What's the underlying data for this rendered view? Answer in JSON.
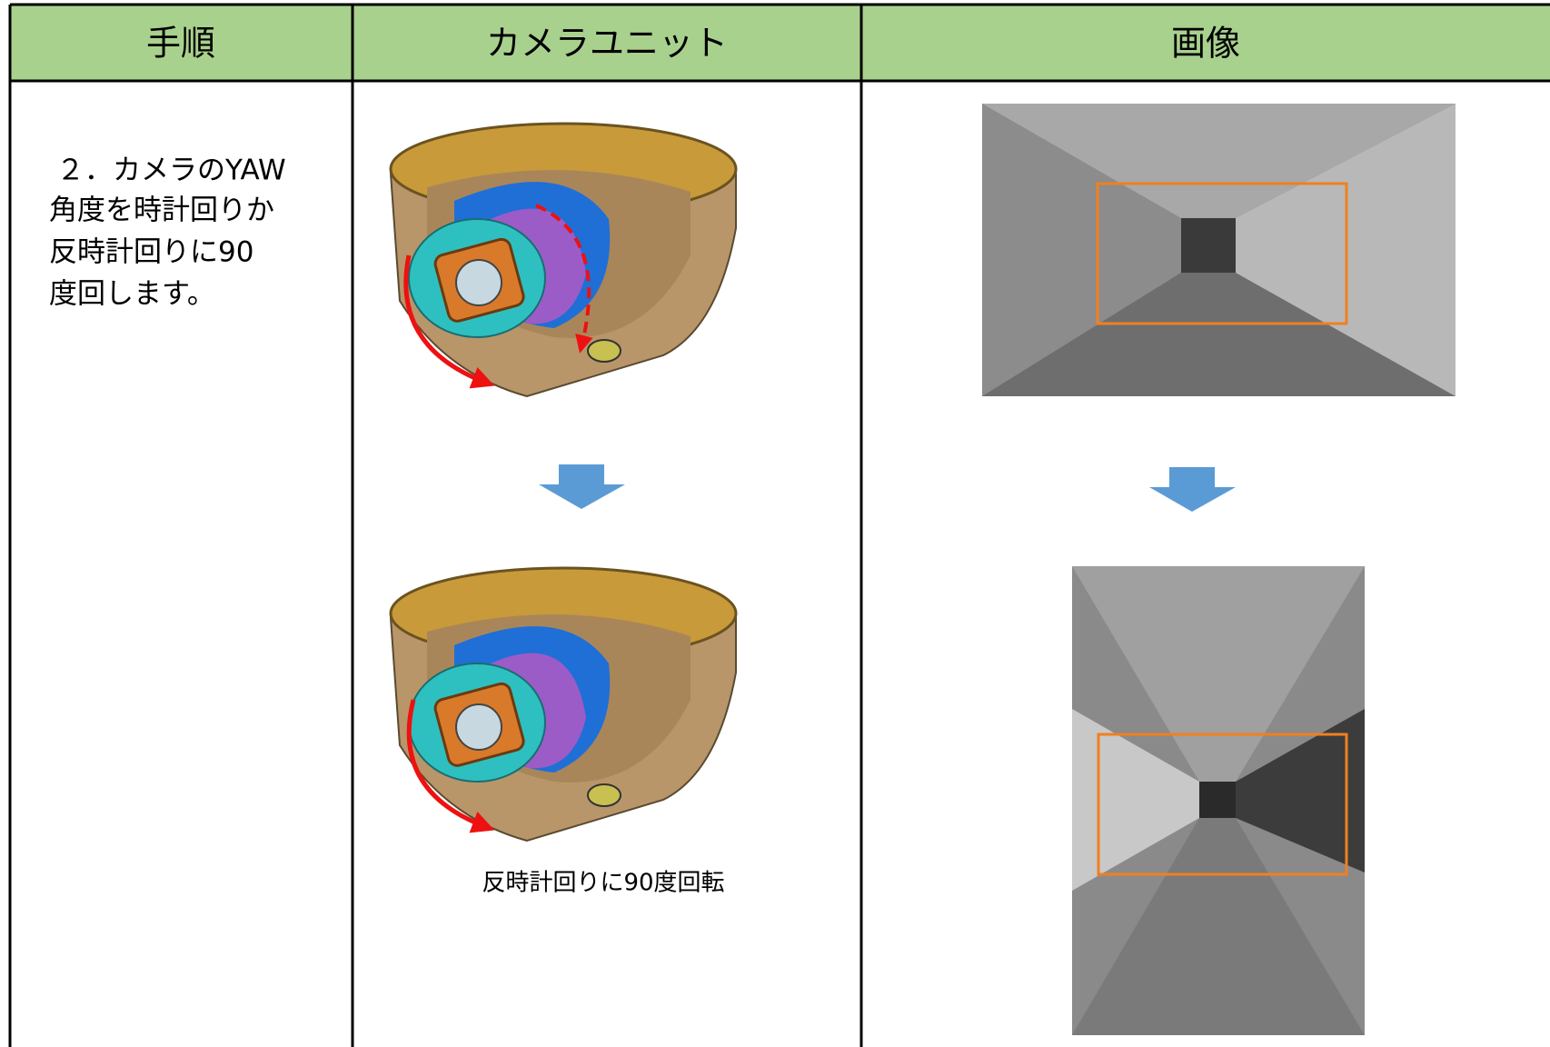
{
  "table": {
    "headers": [
      "手順",
      "カメラユニット",
      "画像"
    ],
    "step_lines": [
      "２．カメラのYAW",
      "角度を時計回りか",
      "反時計回りに90",
      "度回します。"
    ],
    "caption": "反時計回りに90度回転"
  }
}
